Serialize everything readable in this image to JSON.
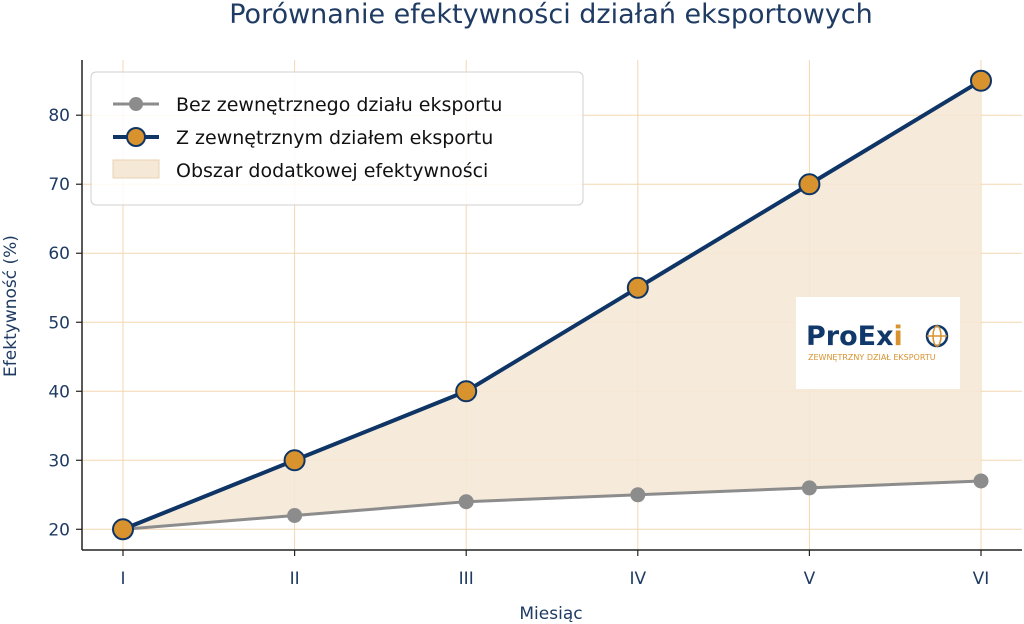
{
  "chart_data": {
    "type": "line",
    "title": "Porównanie efektywności działań eksportowych",
    "xlabel": "Miesiąc",
    "ylabel": "Efektywność (%)",
    "categories": [
      "I",
      "II",
      "III",
      "IV",
      "V",
      "VI"
    ],
    "ylim": [
      17,
      88
    ],
    "yticks": [
      20,
      30,
      40,
      50,
      60,
      70,
      80
    ],
    "grid": true,
    "legend_position": "top-left",
    "series": [
      {
        "name": "Bez zewnętrznego działu eksportu",
        "values": [
          20,
          22,
          24,
          25,
          26,
          27
        ],
        "line_color": "#8c8c8c",
        "marker_color": "#8c8c8c"
      },
      {
        "name": "Z zewnętrznym działem eksportu",
        "values": [
          20,
          30,
          40,
          55,
          70,
          85
        ],
        "line_color": "#0f3566",
        "marker_color": "#d8932e"
      }
    ],
    "fill_between": {
      "name": "Obszar dodatkowej efektywności",
      "color": "#f5e8d6"
    },
    "grid_color": "#f3d7b0"
  },
  "logo": {
    "text_pro": "ProEx",
    "text_i": "i",
    "subtitle": "ZEWNĘTRZNY DZIAŁ EKSPORTU"
  }
}
